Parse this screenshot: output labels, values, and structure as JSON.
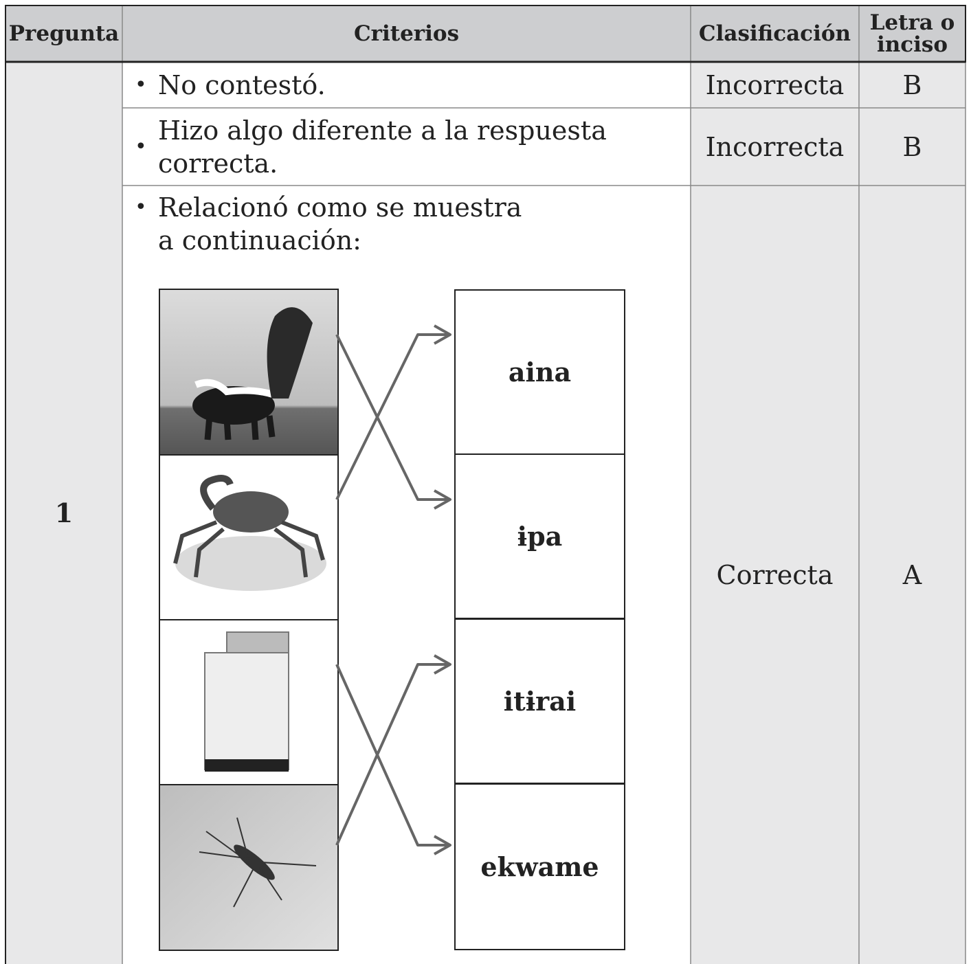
{
  "header": {
    "columns": [
      "Pregunta",
      "Criterios",
      "Clasificación",
      "Letra o\ninciso"
    ]
  },
  "rows": [
    {
      "question": "1",
      "criteria": [
        {
          "text": "No contestó.",
          "classification": "Incorrecta",
          "letter": "B"
        },
        {
          "text": "Hizo algo diferente a la respuesta\ncorrecta.",
          "classification": "Incorrecta",
          "letter": "B"
        },
        {
          "text": "Relacionó como se muestra\na continuación:",
          "classification": "Correcta",
          "letter": "A",
          "words": [
            "aina",
            "ɨpa",
            "itɨrai",
            "ekwame"
          ]
        }
      ]
    }
  ]
}
